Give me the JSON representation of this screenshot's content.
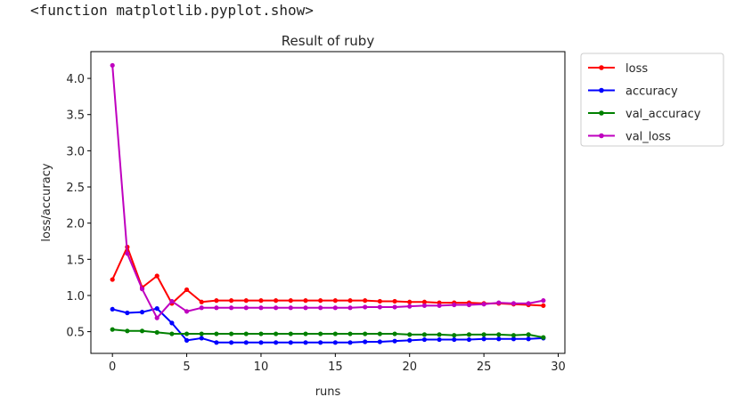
{
  "output_text": "<function matplotlib.pyplot.show>",
  "chart_data": {
    "type": "line",
    "title": "Result of ruby",
    "xlabel": "runs",
    "ylabel": "loss/accuracy",
    "xlim": [
      -1.45,
      30.45
    ],
    "ylim": [
      0.2,
      4.37
    ],
    "xticks": [
      0,
      5,
      10,
      15,
      20,
      25,
      30
    ],
    "yticks": [
      0.5,
      1.0,
      1.5,
      2.0,
      2.5,
      3.0,
      3.5,
      4.0
    ],
    "xtick_labels": [
      "0",
      "5",
      "10",
      "15",
      "20",
      "25",
      "30"
    ],
    "ytick_labels": [
      "0.5",
      "1.0",
      "1.5",
      "2.0",
      "2.5",
      "3.0",
      "3.5",
      "4.0"
    ],
    "legend_position": "outside-upper-right",
    "grid": false,
    "x": [
      0,
      1,
      2,
      3,
      4,
      5,
      6,
      7,
      8,
      9,
      10,
      11,
      12,
      13,
      14,
      15,
      16,
      17,
      18,
      19,
      20,
      21,
      22,
      23,
      24,
      25,
      26,
      27,
      28,
      29
    ],
    "series": [
      {
        "name": "loss",
        "color": "#ff0000",
        "values": [
          1.22,
          1.67,
          1.11,
          1.27,
          0.89,
          1.08,
          0.91,
          0.93,
          0.93,
          0.93,
          0.93,
          0.93,
          0.93,
          0.93,
          0.93,
          0.93,
          0.93,
          0.93,
          0.92,
          0.92,
          0.91,
          0.91,
          0.9,
          0.9,
          0.9,
          0.89,
          0.89,
          0.88,
          0.87,
          0.86
        ]
      },
      {
        "name": "accuracy",
        "color": "#0000ff",
        "values": [
          0.81,
          0.76,
          0.77,
          0.82,
          0.62,
          0.38,
          0.41,
          0.35,
          0.35,
          0.35,
          0.35,
          0.35,
          0.35,
          0.35,
          0.35,
          0.35,
          0.35,
          0.36,
          0.36,
          0.37,
          0.38,
          0.39,
          0.39,
          0.39,
          0.39,
          0.4,
          0.4,
          0.4,
          0.4,
          0.41
        ]
      },
      {
        "name": "val_accuracy",
        "color": "#008000",
        "values": [
          0.53,
          0.51,
          0.51,
          0.49,
          0.47,
          0.47,
          0.47,
          0.47,
          0.47,
          0.47,
          0.47,
          0.47,
          0.47,
          0.47,
          0.47,
          0.47,
          0.47,
          0.47,
          0.47,
          0.47,
          0.46,
          0.46,
          0.46,
          0.45,
          0.46,
          0.46,
          0.46,
          0.45,
          0.46,
          0.42
        ]
      },
      {
        "name": "val_loss",
        "color": "#bf00bf",
        "values": [
          4.18,
          1.58,
          1.09,
          0.69,
          0.92,
          0.78,
          0.83,
          0.83,
          0.83,
          0.83,
          0.83,
          0.83,
          0.83,
          0.83,
          0.83,
          0.83,
          0.83,
          0.84,
          0.84,
          0.84,
          0.85,
          0.86,
          0.86,
          0.87,
          0.87,
          0.88,
          0.9,
          0.89,
          0.89,
          0.93
        ]
      }
    ]
  }
}
